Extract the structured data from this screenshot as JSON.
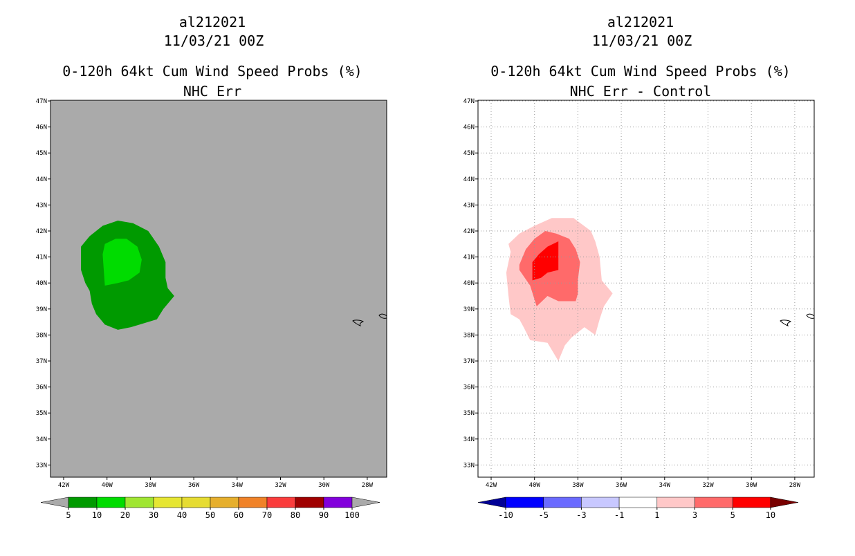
{
  "left": {
    "title_line1": "al212021",
    "title_line2": "11/03/21 00Z",
    "title_line3": "0-120h 64kt Cum Wind Speed Probs (%)",
    "title_line4": "NHC Err",
    "background_color": "#aaaaaa"
  },
  "right": {
    "title_line1": "al212021",
    "title_line2": "11/03/21 00Z",
    "title_line3": "0-120h 64kt Cum Wind Speed Probs (%)",
    "title_line4": "NHC Err - Control",
    "background_color": "#ffffff"
  },
  "lat_labels": [
    "33N",
    "34N",
    "35N",
    "36N",
    "37N",
    "38N",
    "39N",
    "40N",
    "41N",
    "42N",
    "43N",
    "44N",
    "45N",
    "46N",
    "47N"
  ],
  "lon_labels": [
    "42W",
    "40W",
    "38W",
    "36W",
    "34W",
    "32W",
    "30W",
    "28W"
  ],
  "left_colorbar": {
    "labels": [
      "5",
      "10",
      "20",
      "30",
      "40",
      "50",
      "60",
      "70",
      "80",
      "90",
      "100"
    ],
    "colors": [
      "#009a00",
      "#00dc00",
      "#a0e632",
      "#e6e632",
      "#e6dc32",
      "#e6af2d",
      "#f08228",
      "#fa3c3c",
      "#a00000",
      "#8200dc"
    ],
    "end_color": "#aaaaaa"
  },
  "right_colorbar": {
    "labels": [
      "-10",
      "-5",
      "-3",
      "-1",
      "1",
      "3",
      "5",
      "10"
    ],
    "colors": [
      "#0000ff",
      "#6a6aff",
      "#c8c8ff",
      "#ffffff",
      "#ffc8c8",
      "#ff6a6a",
      "#ff0000"
    ],
    "low_end_color": "#000096",
    "high_end_color": "#780000"
  },
  "chart_data": [
    {
      "type": "heatmap",
      "title": "0-120h 64kt Cum Wind Speed Probs (%) NHC Err",
      "subtitle": "al212021 11/03/21 00Z",
      "xlim": [
        -42.6,
        -27.2
      ],
      "ylim": [
        32.5,
        47
      ],
      "contours": [
        {
          "level": "5-10%",
          "color": "#009a00",
          "polygon": [
            [
              -41.2,
              41.4
            ],
            [
              -40.8,
              41.8
            ],
            [
              -40.2,
              42.2
            ],
            [
              -39.5,
              42.4
            ],
            [
              -38.8,
              42.3
            ],
            [
              -38.1,
              42.0
            ],
            [
              -37.6,
              41.4
            ],
            [
              -37.3,
              40.8
            ],
            [
              -37.3,
              40.2
            ],
            [
              -37.2,
              39.8
            ],
            [
              -36.9,
              39.5
            ],
            [
              -37.4,
              39.0
            ],
            [
              -37.7,
              38.6
            ],
            [
              -38.5,
              38.4
            ],
            [
              -38.9,
              38.3
            ],
            [
              -39.5,
              38.2
            ],
            [
              -40.1,
              38.4
            ],
            [
              -40.5,
              38.8
            ],
            [
              -40.7,
              39.2
            ],
            [
              -40.8,
              39.7
            ],
            [
              -41.0,
              40.0
            ],
            [
              -41.2,
              40.5
            ]
          ]
        },
        {
          "level": "10-20%",
          "color": "#00dc00",
          "polygon": [
            [
              -40.2,
              41.1
            ],
            [
              -40.1,
              41.5
            ],
            [
              -39.6,
              41.7
            ],
            [
              -39.1,
              41.7
            ],
            [
              -38.6,
              41.4
            ],
            [
              -38.4,
              40.9
            ],
            [
              -38.5,
              40.4
            ],
            [
              -39.0,
              40.1
            ],
            [
              -39.5,
              40.0
            ],
            [
              -40.1,
              39.9
            ]
          ]
        }
      ],
      "colorbar_levels": [
        5,
        10,
        20,
        30,
        40,
        50,
        60,
        70,
        80,
        90,
        100
      ]
    },
    {
      "type": "heatmap",
      "title": "0-120h 64kt Cum Wind Speed Probs (%) NHC Err - Control",
      "subtitle": "al212021 11/03/21 00Z",
      "xlim": [
        -42.6,
        -27.2
      ],
      "ylim": [
        32.5,
        47
      ],
      "contours": [
        {
          "level": "1-3",
          "color": "#ffc8c8",
          "polygon": [
            [
              -41.2,
              41.5
            ],
            [
              -40.7,
              41.9
            ],
            [
              -40.0,
              42.2
            ],
            [
              -39.2,
              42.5
            ],
            [
              -38.2,
              42.5
            ],
            [
              -37.4,
              42.0
            ],
            [
              -37.2,
              41.6
            ],
            [
              -37.0,
              41.0
            ],
            [
              -36.9,
              40.1
            ],
            [
              -36.4,
              39.6
            ],
            [
              -36.8,
              39.1
            ],
            [
              -37.0,
              38.6
            ],
            [
              -37.2,
              38.0
            ],
            [
              -37.7,
              38.3
            ],
            [
              -38.3,
              37.9
            ],
            [
              -38.6,
              37.6
            ],
            [
              -38.9,
              37.0
            ],
            [
              -39.4,
              37.7
            ],
            [
              -40.2,
              37.8
            ],
            [
              -40.5,
              38.3
            ],
            [
              -40.7,
              38.6
            ],
            [
              -41.1,
              38.8
            ],
            [
              -41.2,
              39.5
            ],
            [
              -41.3,
              40.4
            ],
            [
              -41.1,
              41.2
            ]
          ]
        },
        {
          "level": "3-5",
          "color": "#ff6a6a",
          "polygon": [
            [
              -40.7,
              40.7
            ],
            [
              -40.4,
              41.3
            ],
            [
              -40.0,
              41.7
            ],
            [
              -39.5,
              42.0
            ],
            [
              -39.0,
              41.9
            ],
            [
              -38.4,
              41.7
            ],
            [
              -38.1,
              41.3
            ],
            [
              -37.9,
              40.8
            ],
            [
              -38.0,
              40.1
            ],
            [
              -38.0,
              39.6
            ],
            [
              -38.1,
              39.3
            ],
            [
              -38.9,
              39.3
            ],
            [
              -39.4,
              39.5
            ],
            [
              -39.9,
              39.1
            ],
            [
              -40.2,
              39.9
            ],
            [
              -40.7,
              40.5
            ]
          ]
        },
        {
          "level": "5-10",
          "color": "#ff0000",
          "polygon": [
            [
              -40.1,
              40.8
            ],
            [
              -39.8,
              41.1
            ],
            [
              -39.4,
              41.4
            ],
            [
              -38.9,
              41.6
            ],
            [
              -38.9,
              40.5
            ],
            [
              -39.4,
              40.4
            ],
            [
              -39.7,
              40.2
            ],
            [
              -40.1,
              40.1
            ]
          ]
        }
      ],
      "colorbar_levels": [
        -10,
        -5,
        -3,
        -1,
        1,
        3,
        5,
        10
      ]
    }
  ]
}
